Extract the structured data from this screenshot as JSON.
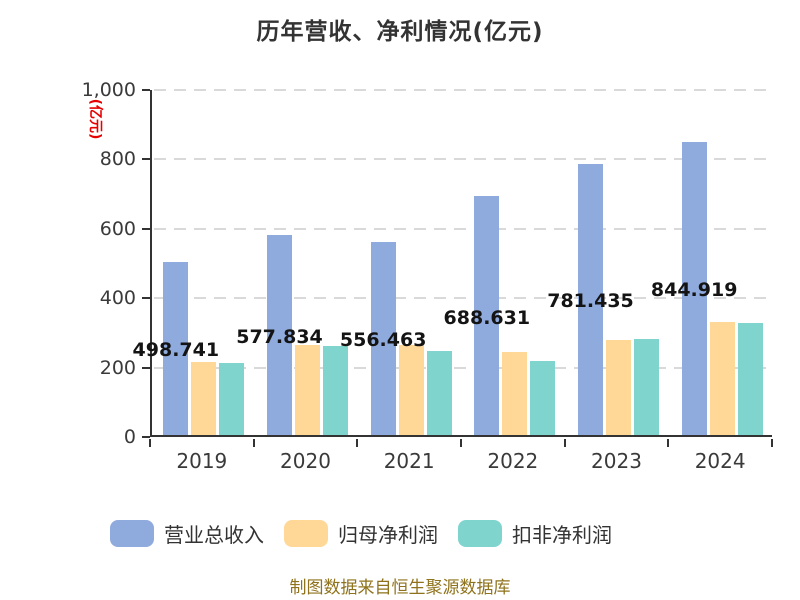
{
  "title": "历年营收、净利情况(亿元)",
  "y_axis_unit_label": "(亿元)",
  "source_note": "制图数据来自恒生聚源数据库",
  "colors": {
    "background": "#ffffff",
    "title_text": "#333333",
    "axis": "#333333",
    "gridline": "#d9d9d9",
    "value_label_text": "#141414",
    "axis_unit_label": "#e60000",
    "source_note_text": "#8f721c",
    "revenue_bar": "#8FAADC",
    "net_profit_bar": "#FFD897",
    "non_gaap_bar": "#7FD5CE"
  },
  "chart_data": {
    "type": "bar",
    "title": "历年营收、净利情况(亿元)",
    "ylabel": "(亿元)",
    "categories": [
      "2019",
      "2020",
      "2021",
      "2022",
      "2023",
      "2024"
    ],
    "series": [
      {
        "key": "revenue",
        "name": "营业总收入",
        "color": "#8FAADC",
        "values": [
          498.741,
          577.834,
          556.463,
          688.631,
          781.435,
          844.919
        ],
        "labels": [
          "498.741",
          "577.834",
          "556.463",
          "688.631",
          "781.435",
          "844.919"
        ],
        "labels_shown": true
      },
      {
        "key": "net-profit",
        "name": "归母净利润",
        "color": "#FFD897",
        "values": [
          211,
          260,
          258,
          240,
          273,
          325
        ],
        "labels_shown": false
      },
      {
        "key": "non-gaap-net-profit",
        "name": "扣非净利润",
        "color": "#7FD5CE",
        "values": [
          208,
          257,
          241,
          213,
          276,
          323
        ],
        "labels_shown": false
      }
    ],
    "ylim": [
      0,
      1000
    ],
    "ytick_interval": 200,
    "ytick_labels": [
      "0",
      "200",
      "400",
      "600",
      "800",
      "1,000"
    ],
    "grid": "dashed-horizontal",
    "legend_position": "bottom",
    "value_label_position": "inside-middle-of-revenue-bar"
  }
}
